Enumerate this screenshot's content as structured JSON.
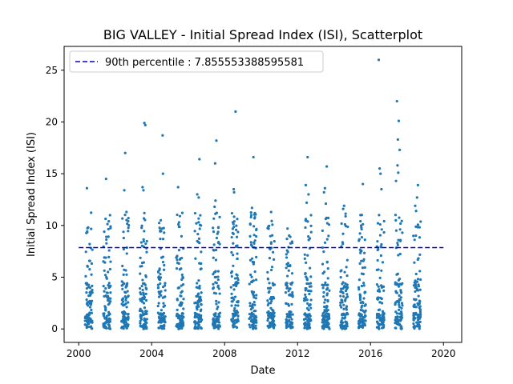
{
  "chart_data": {
    "type": "scatter",
    "title": "BIG VALLEY - Initial Spread Index (ISI), Scatterplot",
    "xlabel": "Date",
    "ylabel": "Initial Spread Index (ISI)",
    "xlim": [
      1999.2,
      2021.0
    ],
    "ylim": [
      -1.3,
      27.3
    ],
    "x_ticks": [
      2000,
      2004,
      2008,
      2012,
      2016,
      2020
    ],
    "y_ticks": [
      0,
      5,
      10,
      15,
      20,
      25
    ],
    "grid": false,
    "legend_position": "top-left",
    "point_color": "#1f77b4",
    "reference_line": {
      "label": "90th percentile : 7.855553388595581",
      "value": 7.855553388595581,
      "color": "#0000cc",
      "style": "dashed"
    },
    "series": [
      {
        "seasons": [
          {
            "start": 2000.35,
            "end": 2000.75,
            "max": 13.6,
            "outliers": [
              [
                2000.45,
                13.6
              ],
              [
                2000.52,
                9.8
              ],
              [
                2000.6,
                8.2
              ]
            ]
          },
          {
            "start": 2001.35,
            "end": 2001.75,
            "max": 14.5,
            "outliers": [
              [
                2001.5,
                14.5
              ],
              [
                2001.65,
                10.4
              ],
              [
                2001.4,
                9.4
              ]
            ]
          },
          {
            "start": 2002.35,
            "end": 2002.75,
            "max": 17.0,
            "outliers": [
              [
                2002.55,
                17.0
              ],
              [
                2002.5,
                13.4
              ],
              [
                2002.62,
                11.3
              ]
            ]
          },
          {
            "start": 2003.35,
            "end": 2003.75,
            "max": 19.9,
            "outliers": [
              [
                2003.6,
                19.9
              ],
              [
                2003.65,
                19.7
              ],
              [
                2003.5,
                13.7
              ],
              [
                2003.55,
                13.4
              ],
              [
                2003.6,
                11.2
              ]
            ]
          },
          {
            "start": 2004.35,
            "end": 2004.75,
            "max": 18.7,
            "outliers": [
              [
                2004.6,
                18.7
              ],
              [
                2004.62,
                15.0
              ],
              [
                2004.5,
                10.5
              ]
            ]
          },
          {
            "start": 2005.35,
            "end": 2005.75,
            "max": 13.7,
            "outliers": [
              [
                2005.45,
                13.7
              ],
              [
                2005.5,
                10.3
              ],
              [
                2005.55,
                10.9
              ]
            ]
          },
          {
            "start": 2006.35,
            "end": 2006.75,
            "max": 16.4,
            "outliers": [
              [
                2006.62,
                16.4
              ],
              [
                2006.5,
                13.0
              ],
              [
                2006.58,
                12.7
              ],
              [
                2006.45,
                10.2
              ]
            ]
          },
          {
            "start": 2007.35,
            "end": 2007.75,
            "max": 18.2,
            "outliers": [
              [
                2007.55,
                18.2
              ],
              [
                2007.48,
                16.0
              ],
              [
                2007.5,
                12.4
              ],
              [
                2007.45,
                11.8
              ]
            ]
          },
          {
            "start": 2008.35,
            "end": 2008.75,
            "max": 21.0,
            "outliers": [
              [
                2008.6,
                21.0
              ],
              [
                2008.5,
                13.5
              ],
              [
                2008.52,
                13.2
              ],
              [
                2008.45,
                10.3
              ]
            ]
          },
          {
            "start": 2009.35,
            "end": 2009.75,
            "max": 16.6,
            "outliers": [
              [
                2009.58,
                16.6
              ],
              [
                2009.5,
                11.7
              ],
              [
                2009.45,
                10.8
              ]
            ]
          },
          {
            "start": 2010.35,
            "end": 2010.75,
            "max": 11.3,
            "outliers": [
              [
                2010.55,
                11.3
              ],
              [
                2010.4,
                9.9
              ]
            ]
          },
          {
            "start": 2011.35,
            "end": 2011.75,
            "max": 9.7,
            "outliers": [
              [
                2011.45,
                9.7
              ],
              [
                2011.6,
                8.9
              ]
            ]
          },
          {
            "start": 2012.35,
            "end": 2012.75,
            "max": 16.6,
            "outliers": [
              [
                2012.55,
                16.6
              ],
              [
                2012.45,
                13.9
              ],
              [
                2012.6,
                13.0
              ],
              [
                2012.5,
                12.2
              ]
            ]
          },
          {
            "start": 2013.35,
            "end": 2013.75,
            "max": 15.7,
            "outliers": [
              [
                2013.6,
                15.7
              ],
              [
                2013.5,
                13.6
              ],
              [
                2013.45,
                13.2
              ],
              [
                2013.55,
                12.1
              ]
            ]
          },
          {
            "start": 2014.35,
            "end": 2014.75,
            "max": 11.9,
            "outliers": [
              [
                2014.55,
                11.9
              ],
              [
                2014.5,
                11.6
              ],
              [
                2014.6,
                10.1
              ]
            ]
          },
          {
            "start": 2015.35,
            "end": 2015.75,
            "max": 14.0,
            "outliers": [
              [
                2015.58,
                14.0
              ],
              [
                2015.45,
                11.0
              ],
              [
                2015.5,
                9.8
              ]
            ]
          },
          {
            "start": 2016.35,
            "end": 2016.75,
            "max": 26.0,
            "outliers": [
              [
                2016.45,
                26.0
              ],
              [
                2016.5,
                15.5
              ],
              [
                2016.55,
                15.0
              ],
              [
                2016.6,
                13.5
              ]
            ]
          },
          {
            "start": 2017.35,
            "end": 2017.75,
            "max": 22.0,
            "outliers": [
              [
                2017.45,
                22.0
              ],
              [
                2017.55,
                20.1
              ],
              [
                2017.5,
                18.3
              ],
              [
                2017.6,
                17.3
              ],
              [
                2017.48,
                15.8
              ],
              [
                2017.52,
                15.1
              ],
              [
                2017.4,
                14.3
              ]
            ]
          },
          {
            "start": 2018.35,
            "end": 2018.75,
            "max": 13.9,
            "outliers": [
              [
                2018.6,
                13.9
              ],
              [
                2018.55,
                12.7
              ],
              [
                2018.45,
                11.9
              ],
              [
                2018.5,
                11.4
              ]
            ]
          }
        ]
      }
    ]
  }
}
